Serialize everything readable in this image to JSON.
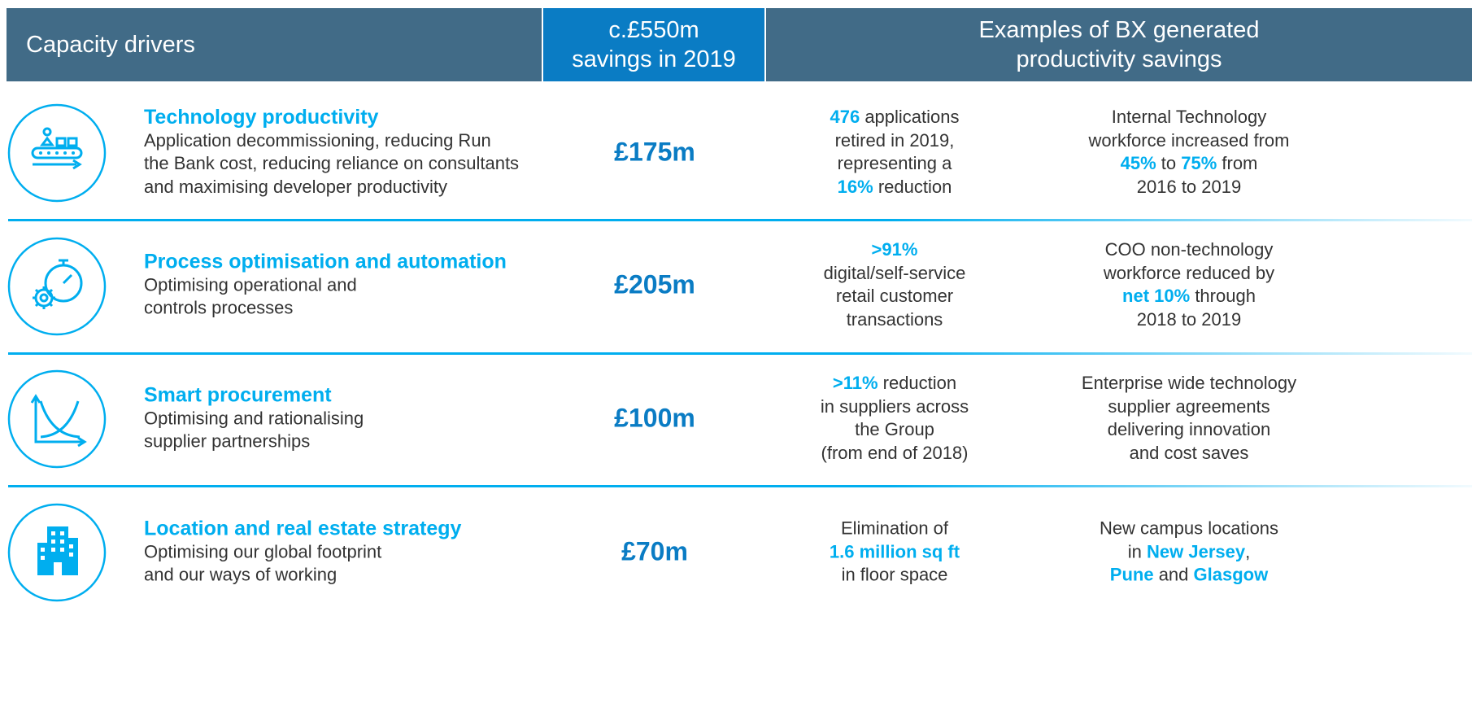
{
  "header": {
    "drivers": "Capacity drivers",
    "savings": [
      "c.£550m",
      "savings in 2019"
    ],
    "examples": [
      "Examples of BX generated",
      "productivity savings"
    ]
  },
  "rows": [
    {
      "title": "Technology productivity",
      "description": [
        "Application decommissioning, reducing Run",
        "the Bank cost, reducing reliance on consultants",
        "and maximising developer productivity"
      ],
      "amount": "£175m",
      "example1": [
        [
          {
            "t": "476",
            "em": true
          },
          {
            "t": " applications"
          }
        ],
        [
          {
            "t": "retired in 2019,"
          }
        ],
        [
          {
            "t": "representing a"
          }
        ],
        [
          {
            "t": "16%",
            "em": true
          },
          {
            "t": " reduction"
          }
        ]
      ],
      "example2": [
        [
          {
            "t": "Internal Technology"
          }
        ],
        [
          {
            "t": "workforce increased from"
          }
        ],
        [
          {
            "t": "45%",
            "em": true
          },
          {
            "t": " to "
          },
          {
            "t": "75%",
            "em": true
          },
          {
            "t": " from"
          }
        ],
        [
          {
            "t": "2016 to 2019"
          }
        ]
      ]
    },
    {
      "title": "Process optimisation and automation",
      "description": [
        "Optimising operational and",
        "controls processes"
      ],
      "amount": "£205m",
      "example1": [
        [
          {
            "t": ">91%",
            "em": true
          }
        ],
        [
          {
            "t": "digital/self-service"
          }
        ],
        [
          {
            "t": "retail customer"
          }
        ],
        [
          {
            "t": "transactions"
          }
        ]
      ],
      "example2": [
        [
          {
            "t": "COO non-technology"
          }
        ],
        [
          {
            "t": "workforce reduced by"
          }
        ],
        [
          {
            "t": "net 10%",
            "em": true
          },
          {
            "t": " through"
          }
        ],
        [
          {
            "t": "2018 to 2019"
          }
        ]
      ]
    },
    {
      "title": "Smart procurement",
      "description": [
        "Optimising and rationalising",
        "supplier partnerships"
      ],
      "amount": "£100m",
      "example1": [
        [
          {
            "t": ">11%",
            "em": true
          },
          {
            "t": " reduction"
          }
        ],
        [
          {
            "t": "in suppliers across"
          }
        ],
        [
          {
            "t": "the Group"
          }
        ],
        [
          {
            "t": "(from end of 2018)"
          }
        ]
      ],
      "example2": [
        [
          {
            "t": "Enterprise wide technology"
          }
        ],
        [
          {
            "t": "supplier agreements"
          }
        ],
        [
          {
            "t": "delivering innovation"
          }
        ],
        [
          {
            "t": "and cost saves"
          }
        ]
      ]
    },
    {
      "title": "Location and real estate strategy",
      "description": [
        "Optimising our global footprint",
        "and our ways of working"
      ],
      "amount": "£70m",
      "example1": [
        [
          {
            "t": "Elimination of"
          }
        ],
        [
          {
            "t": "1.6 million sq ft",
            "em": true
          }
        ],
        [
          {
            "t": "in floor space"
          }
        ]
      ],
      "example2": [
        [
          {
            "t": "New campus locations"
          }
        ],
        [
          {
            "t": "in "
          },
          {
            "t": "New Jersey",
            "em": true
          },
          {
            "t": ","
          }
        ],
        [
          {
            "t": "Pune",
            "em": true
          },
          {
            "t": " and "
          },
          {
            "t": "Glasgow",
            "em": true
          }
        ]
      ]
    }
  ]
}
